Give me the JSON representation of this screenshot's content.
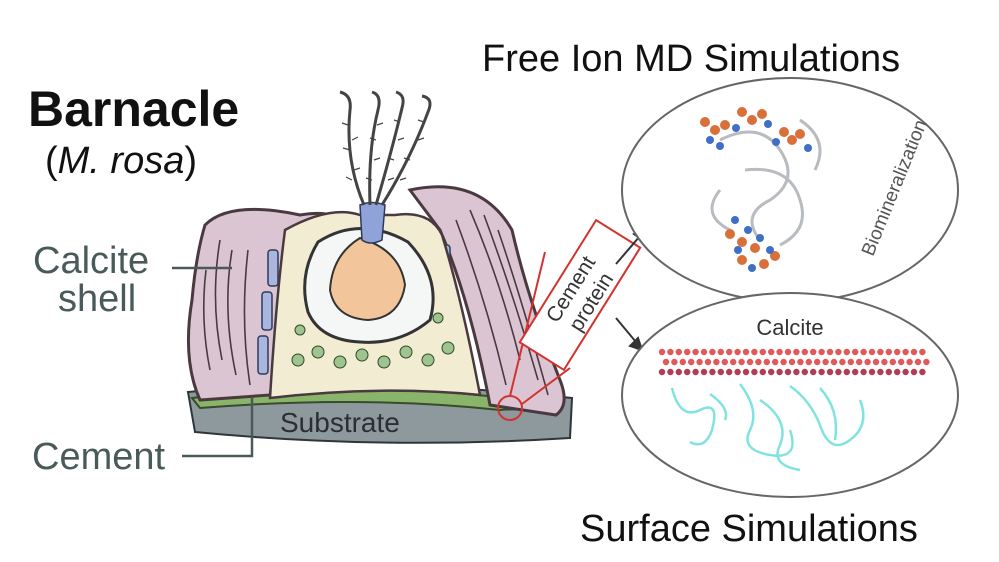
{
  "title": {
    "name": "Barnacle",
    "species_open": "(",
    "species": "M. rosa",
    "species_close": ")"
  },
  "labels": {
    "calcite_shell_line1": "Calcite",
    "calcite_shell_line2": "shell",
    "cement": "Cement",
    "substrate": "Substrate",
    "cement_protein_line1": "Cement",
    "cement_protein_line2": "protein"
  },
  "panels": {
    "free_ion": {
      "title": "Free Ion MD Simulations",
      "side_label": "Biomineralization"
    },
    "surface": {
      "title": "Surface Simulations",
      "inner_label": "Calcite"
    }
  },
  "colors": {
    "shell_pink": "#dcc5d2",
    "shell_outline": "#4a3a40",
    "blue_plates": "#a9b7de",
    "body_cream": "#f2ecd3",
    "green_dots": "#9fc48f",
    "egg_orange": "#f2c59a",
    "substrate_gray": "#8e999d",
    "cement_green": "#88b569",
    "callout_red": "#d2332f",
    "label_gray": "#4a5a5a",
    "protein_orange": "#d9703a",
    "protein_blue": "#3f6fc6",
    "calcite_red": "#e05a5a",
    "peptide_cyan": "#7fe3e0"
  }
}
